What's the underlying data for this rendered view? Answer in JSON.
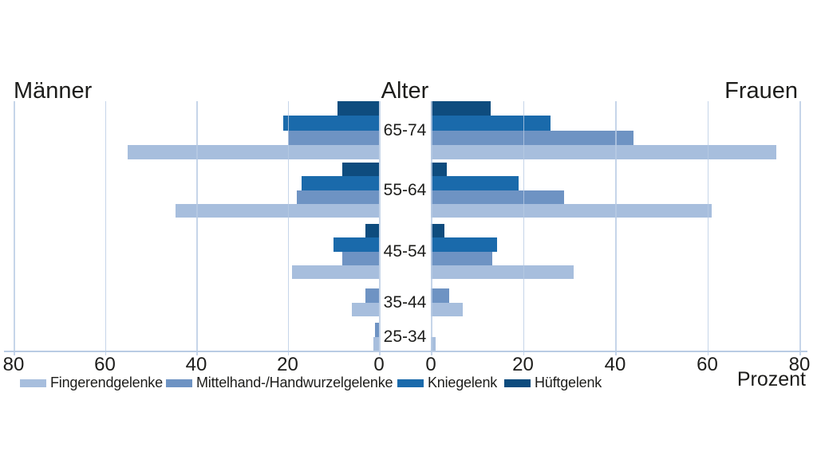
{
  "chart_data": {
    "type": "bar",
    "orientation": "horizontal-pyramid",
    "left_title": "Männer",
    "center_title": "Alter",
    "right_title": "Frauen",
    "axis_label": "Prozent",
    "xlim": [
      0,
      80
    ],
    "ticks": [
      0,
      20,
      40,
      60,
      80
    ],
    "grid": true,
    "age_groups": [
      "65-74",
      "55-64",
      "45-54",
      "35-44",
      "25-34"
    ],
    "series": [
      {
        "name": "Fingerendgelenke",
        "color": "#a7bedd",
        "maenner": [
          55,
          44.5,
          19,
          6,
          1.2
        ],
        "frauen": [
          75,
          61,
          31,
          7,
          1
        ]
      },
      {
        "name": "Mittelhand-/Handwurzelgelenke",
        "color": "#6e93c3",
        "maenner": [
          20,
          18,
          8,
          3,
          0.9
        ],
        "frauen": [
          44,
          29,
          13.3,
          4,
          0
        ]
      },
      {
        "name": "Kniegelenk",
        "color": "#1a6aab",
        "maenner": [
          21,
          17,
          10,
          0,
          0
        ],
        "frauen": [
          26,
          19,
          14.4,
          0,
          0
        ]
      },
      {
        "name": "Hüftgelenk",
        "color": "#0e4c7e",
        "maenner": [
          9,
          8,
          3,
          0,
          0
        ],
        "frauen": [
          13,
          3.5,
          3,
          0,
          0
        ]
      }
    ],
    "colors": {
      "gridline": "#b9cce4",
      "text": "#1d1d1b"
    }
  }
}
